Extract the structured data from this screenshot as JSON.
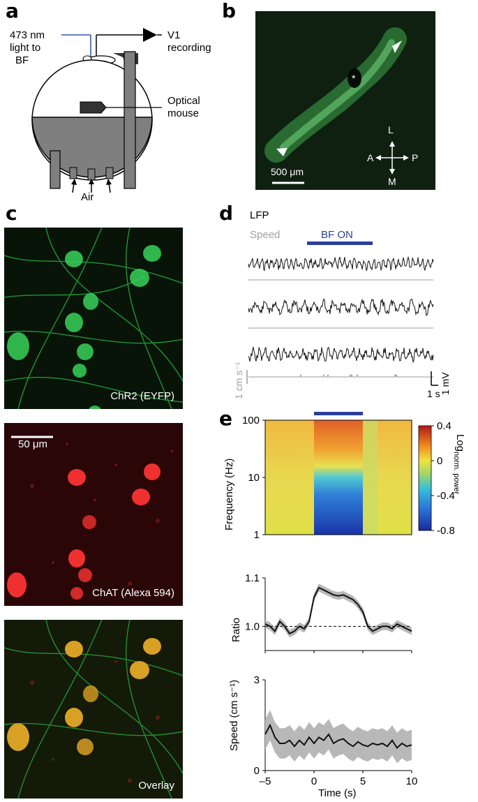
{
  "panels": {
    "a": {
      "letter": "a",
      "light_label": [
        "473 nm",
        "light to",
        "BF"
      ],
      "recording_label": [
        "V1",
        "recording"
      ],
      "mouse_label": [
        "Optical",
        "mouse"
      ],
      "air_label": "Air"
    },
    "b": {
      "letter": "b",
      "scale_label": "500 μm",
      "compass": {
        "up": "L",
        "down": "M",
        "left": "A",
        "right": "P"
      },
      "marker": "*"
    },
    "c": {
      "letter": "c",
      "images": [
        {
          "label": "ChR2 (EYFP)",
          "color": "#22c848"
        },
        {
          "label": "ChAT (Alexa 594)",
          "color": "#e02020",
          "scale_label": "50 μm"
        },
        {
          "label": "Overlay",
          "color": "#c8a020"
        }
      ]
    },
    "d": {
      "letter": "d",
      "legend_lfp": "LFP",
      "legend_speed": "Speed",
      "bf_label": "BF ON",
      "speed_scale": "1 cm s⁻¹",
      "voltage_scale": "1 mV",
      "time_scale": "1 s",
      "bf_color": "#2c3e9c"
    },
    "e": {
      "letter": "e",
      "bf_color": "#2c3e9c"
    }
  },
  "chart_data": [
    {
      "type": "heatmap",
      "title": "",
      "xlabel": "",
      "ylabel": "Frequency (Hz)",
      "ylim": [
        1,
        100
      ],
      "yscale": "log",
      "yticks": [
        1,
        10,
        100
      ],
      "xlim": [
        -5,
        10
      ],
      "colorbar": {
        "label": "Log",
        "label_sub": "norm. power",
        "ticks": [
          0.4,
          0,
          -0.4,
          -0.8
        ],
        "range": [
          -0.8,
          0.4
        ]
      },
      "stim_on": [
        0,
        5
      ]
    },
    {
      "type": "line",
      "ylabel": "Ratio",
      "xlim": [
        -5,
        10
      ],
      "ylim": [
        0.95,
        1.1
      ],
      "yticks": [
        1.0,
        1.1
      ],
      "ytick_labels": [
        "1.0",
        "1.1"
      ],
      "baseline": 1.0,
      "x": [
        -5,
        -4.5,
        -4,
        -3.5,
        -3,
        -2.5,
        -2,
        -1.5,
        -1,
        -0.5,
        0,
        0.5,
        1,
        1.5,
        2,
        2.5,
        3,
        3.5,
        4,
        4.5,
        5,
        5.5,
        6,
        6.5,
        7,
        7.5,
        8,
        8.5,
        9,
        9.5,
        10
      ],
      "series": [
        {
          "values": [
            1.005,
            1.0,
            0.99,
            1.01,
            1.0,
            0.985,
            0.99,
            1.0,
            0.995,
            1.01,
            1.06,
            1.08,
            1.075,
            1.07,
            1.065,
            1.063,
            1.065,
            1.06,
            1.055,
            1.045,
            1.03,
            1.0,
            0.99,
            0.995,
            1.0,
            1.0,
            0.995,
            1.005,
            1.0,
            0.995,
            0.99
          ],
          "band": 0.008
        }
      ]
    },
    {
      "type": "line",
      "ylabel": "Speed (cm s⁻¹)",
      "xlabel": "Time (s)",
      "xlim": [
        -5,
        10
      ],
      "ylim": [
        0,
        3
      ],
      "yticks": [
        0,
        3
      ],
      "xticks": [
        -5,
        0,
        5,
        10
      ],
      "x": [
        -5,
        -4.5,
        -4,
        -3.5,
        -3,
        -2.5,
        -2,
        -1.5,
        -1,
        -0.5,
        0,
        0.5,
        1,
        1.5,
        2,
        2.5,
        3,
        3.5,
        4,
        4.5,
        5,
        5.5,
        6,
        6.5,
        7,
        7.5,
        8,
        8.5,
        9,
        9.5,
        10
      ],
      "series": [
        {
          "values": [
            1.2,
            1.5,
            1.1,
            0.9,
            0.9,
            1.0,
            0.8,
            1.0,
            0.85,
            1.1,
            0.9,
            1.1,
            1.0,
            1.2,
            0.9,
            1.0,
            1.05,
            0.9,
            0.8,
            0.95,
            0.85,
            0.8,
            0.9,
            0.85,
            0.9,
            0.8,
            1.0,
            0.75,
            0.9,
            0.8,
            0.85
          ],
          "band": 0.5
        }
      ]
    }
  ]
}
